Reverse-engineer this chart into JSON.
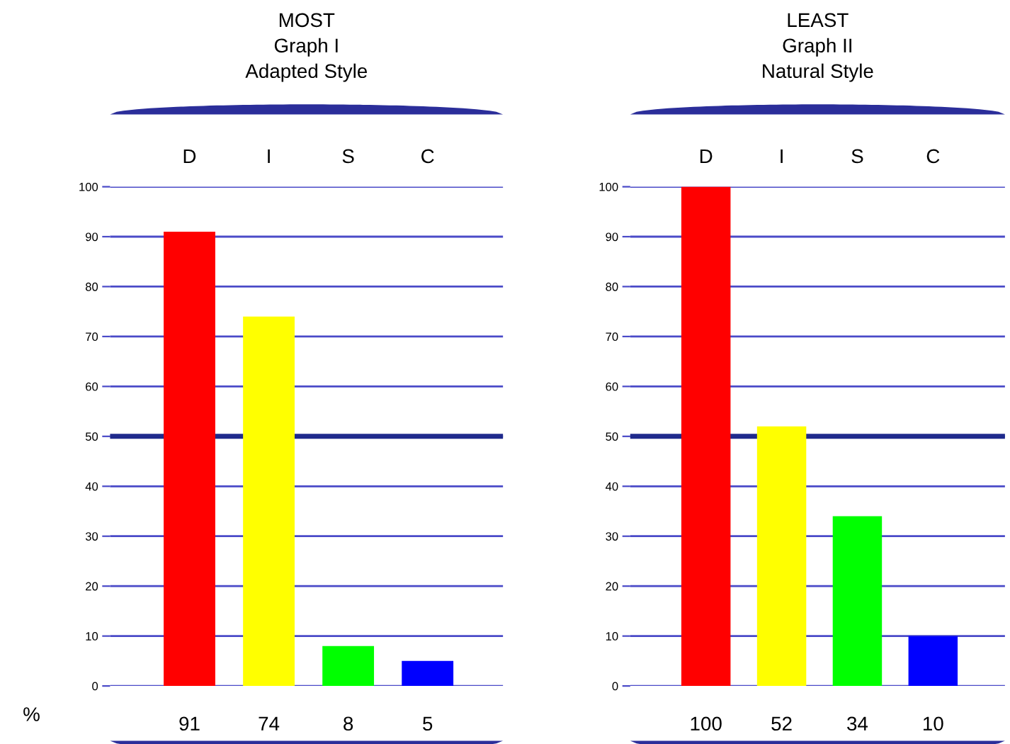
{
  "chart_data": [
    {
      "type": "bar",
      "title": "MOST",
      "subtitle": "Graph I\nAdapted Style",
      "categories": [
        "D",
        "I",
        "S",
        "C"
      ],
      "values": [
        91,
        74,
        8,
        5
      ],
      "colors": [
        "#ff0000",
        "#ffff00",
        "#00ff00",
        "#0000ff"
      ],
      "ylim": [
        0,
        100
      ],
      "yticks": [
        0,
        10,
        20,
        30,
        40,
        50,
        60,
        70,
        80,
        90,
        100
      ],
      "grid": "y",
      "data_labels": true,
      "ref_lines": [
        {
          "axis": "y",
          "value": 50,
          "color": "#1f2a8c"
        }
      ],
      "annotations": [
        "%"
      ]
    },
    {
      "type": "bar",
      "title": "LEAST",
      "subtitle": "Graph II\nNatural Style",
      "categories": [
        "D",
        "I",
        "S",
        "C"
      ],
      "values": [
        100,
        52,
        34,
        10
      ],
      "colors": [
        "#ff0000",
        "#ffff00",
        "#00ff00",
        "#0000ff"
      ],
      "ylim": [
        0,
        100
      ],
      "yticks": [
        0,
        10,
        20,
        30,
        40,
        50,
        60,
        70,
        80,
        90,
        100
      ],
      "grid": "y",
      "data_labels": true,
      "ref_lines": [
        {
          "axis": "y",
          "value": 50,
          "color": "#1f2a8c"
        }
      ]
    }
  ]
}
